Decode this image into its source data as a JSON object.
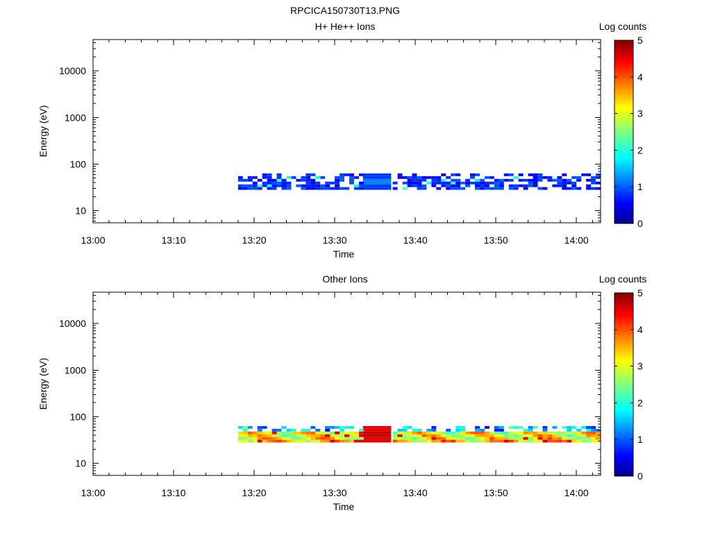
{
  "figure_title": "RPCICA150730T13.PNG",
  "chart_data": [
    {
      "type": "heatmap",
      "title": "H+ He++ Ions",
      "xlabel": "Time",
      "ylabel": "Energy (eV)",
      "xticks": [
        "13:00",
        "13:10",
        "13:20",
        "13:30",
        "13:40",
        "13:50",
        "14:00"
      ],
      "xlim_minutes_after_1300": [
        0,
        63
      ],
      "yscale": "log",
      "ylim": [
        5.5,
        47000
      ],
      "yticks": [
        10,
        100,
        1000,
        10000
      ],
      "ytick_labels": [
        "10",
        "100",
        "1000",
        "10000"
      ],
      "colorbar": {
        "label": "Log counts",
        "range": [
          0,
          5
        ],
        "ticks": [
          "0",
          "1",
          "2",
          "3",
          "4",
          "5"
        ]
      },
      "data_time_range": [
        "13:18",
        "14:03"
      ],
      "data_energy_range_ev": [
        28,
        63
      ],
      "data_gap": [
        "13:33.5",
        "13:37"
      ],
      "gap_value_log_counts": 1.1,
      "typical_log_counts": 0.5,
      "max_log_counts": 2.3
    },
    {
      "type": "heatmap",
      "title": "Other Ions",
      "xlabel": "Time",
      "ylabel": "Energy (eV)",
      "xticks": [
        "13:00",
        "13:10",
        "13:20",
        "13:30",
        "13:40",
        "13:50",
        "14:00"
      ],
      "xlim_minutes_after_1300": [
        0,
        63
      ],
      "yscale": "log",
      "ylim": [
        5.5,
        47000
      ],
      "yticks": [
        10,
        100,
        1000,
        10000
      ],
      "ytick_labels": [
        "10",
        "100",
        "1000",
        "10000"
      ],
      "colorbar": {
        "label": "Log counts",
        "range": [
          0,
          5
        ],
        "ticks": [
          "0",
          "1",
          "2",
          "3",
          "4",
          "5"
        ]
      },
      "data_time_range": [
        "13:18",
        "14:03"
      ],
      "data_energy_range_ev": [
        28,
        63
      ],
      "data_gap": [
        "13:33.5",
        "13:37"
      ],
      "gap_value_log_counts": 4.6,
      "typical_log_counts": 2.8,
      "max_log_counts": 4.8
    }
  ]
}
